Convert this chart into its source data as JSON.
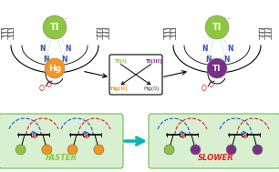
{
  "bg_color": "#ffffff",
  "light_green_bg": "#d8f0d0",
  "green_sphere_color": "#8dc63f",
  "orange_sphere_color": "#f7941d",
  "purple_sphere_color": "#7b2d8b",
  "tl_text": "Tl",
  "hg_text": "Hg",
  "faster_text": "FASTER",
  "slower_text": "SLOWER",
  "tl1_label": "Tl(I)",
  "tl3_label": "Tl(III)",
  "hg2_label": "Hg(II)",
  "hg0_label": "Hg(0)",
  "tl1_color": "#8dc63f",
  "tl3_color": "#7b2d8b",
  "hg2_color": "#f7941d",
  "hg0_color": "#333333",
  "arrow_teal": "#00b5ad",
  "red_color": "#dd2222",
  "blue_color": "#2255cc",
  "n_color": "#3355bb",
  "o_color": "#dd2222",
  "wing_color": "#555555"
}
